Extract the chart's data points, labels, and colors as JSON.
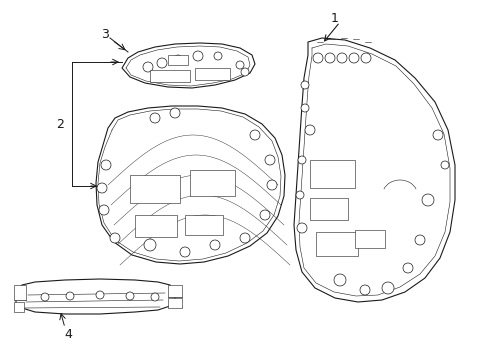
{
  "background_color": "#ffffff",
  "line_color": "#1a1a1a",
  "label_color": "#000000",
  "figsize": [
    4.89,
    3.6
  ],
  "dpi": 100,
  "xlim": [
    0,
    489
  ],
  "ylim": [
    0,
    360
  ]
}
